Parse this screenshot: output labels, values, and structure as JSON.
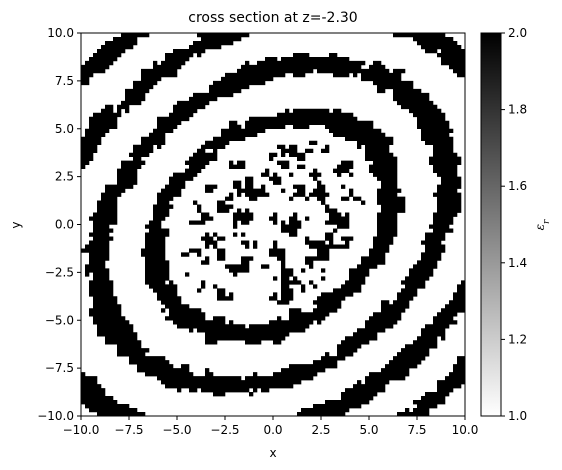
{
  "chart_data": {
    "type": "heatmap",
    "title": "cross section at z=-2.30",
    "xlabel": "x",
    "ylabel": "y",
    "xlim": [
      -10.0,
      10.0
    ],
    "ylim": [
      -10.0,
      10.0
    ],
    "x_ticks": [
      -10.0,
      -7.5,
      -5.0,
      -2.5,
      0.0,
      2.5,
      5.0,
      7.5,
      10.0
    ],
    "x_tick_labels": [
      "−10.0",
      "−7.5",
      "−5.0",
      "−2.5",
      "0.0",
      "2.5",
      "5.0",
      "7.5",
      "10.0"
    ],
    "y_ticks": [
      10.0,
      7.5,
      5.0,
      2.5,
      0.0,
      -2.5,
      -5.0,
      -7.5,
      -10.0
    ],
    "y_tick_labels": [
      "10.0",
      "7.5",
      "5.0",
      "2.5",
      "0.0",
      "−2.5",
      "−5.0",
      "−7.5",
      "−10.0"
    ],
    "colormap": "gray_r",
    "value_range": [
      1.0,
      2.0
    ],
    "pattern": "binary permittivity map: black regions (value 2.0) form concentric elliptical bands around the center with a dense branching cluster at the center, white background (value 1.0)",
    "colorbar": {
      "label": "ε_r",
      "ticks": [
        2.0,
        1.8,
        1.6,
        1.4,
        1.2,
        1.0
      ],
      "tick_labels": [
        "2.0",
        "1.8",
        "1.6",
        "1.4",
        "1.2",
        "1.0"
      ],
      "low_color": "#ffffff",
      "high_color": "#000000"
    }
  }
}
